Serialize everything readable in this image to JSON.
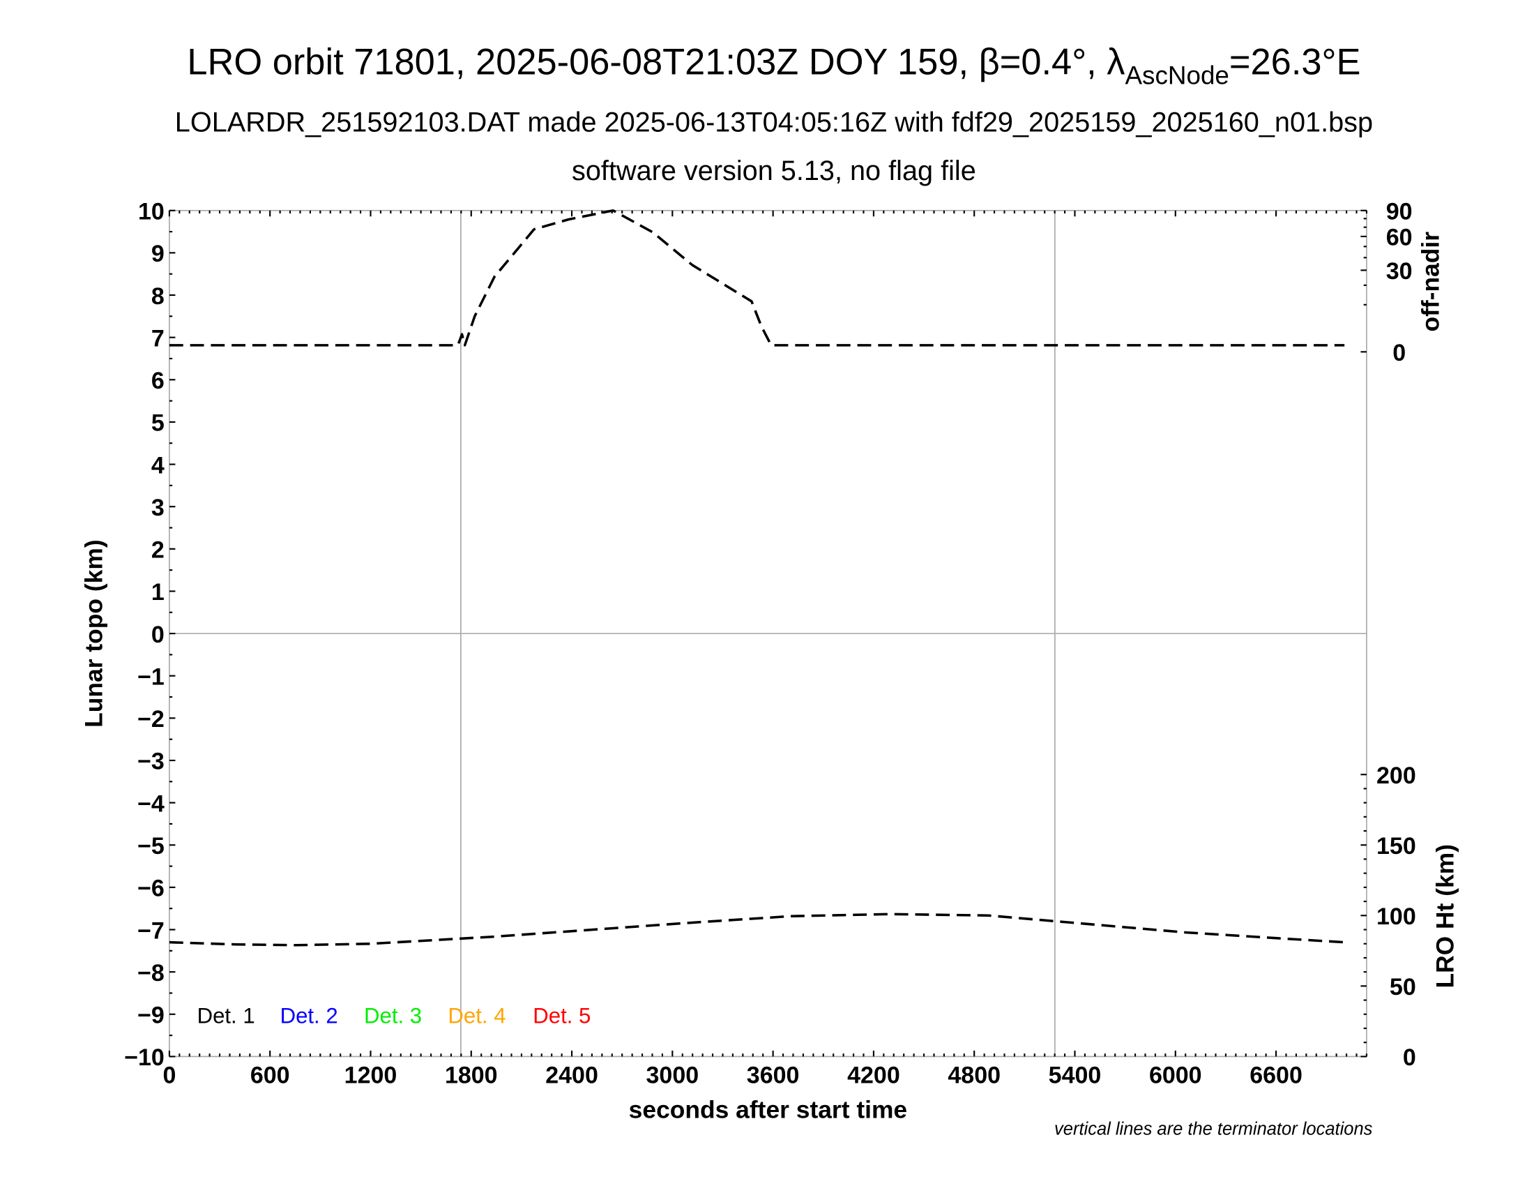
{
  "title": {
    "main": "LRO orbit 71801, 2025-06-08T21:03Z DOY 159, β=0.4°, λ",
    "sub": "AscNode",
    "tail": "=26.3°E",
    "line2": "LOLARDR_251592103.DAT made 2025-06-13T04:05:16Z with fdf29_2025159_2025160_n01.bsp",
    "line3": "software version 5.13, no flag file"
  },
  "footnote": "vertical lines are the terminator locations",
  "chart_data": {
    "type": "line",
    "xlabel": "seconds after start time",
    "xlim": [
      0,
      7140
    ],
    "xticks": [
      0,
      600,
      1200,
      1800,
      2400,
      3000,
      3600,
      4200,
      4800,
      5400,
      6000,
      6600
    ],
    "grid": false,
    "terminators": [
      1738,
      5281
    ],
    "axes": {
      "left": {
        "label": "Lunar topo (km)",
        "lim": [
          -10,
          10
        ],
        "ticks": [
          10,
          9,
          8,
          7,
          6,
          5,
          4,
          3,
          2,
          1,
          0,
          -1,
          -2,
          -3,
          -4,
          -5,
          -6,
          -7,
          -8,
          -9,
          -10
        ]
      },
      "right_top": {
        "label": "off-nadir",
        "scale": "sqrt",
        "lim": [
          0,
          90
        ],
        "ticks": [
          0,
          30,
          60,
          90
        ]
      },
      "right_bottom": {
        "label": "LRO Ht (km)",
        "lim": [
          0,
          600
        ],
        "ticks": [
          0,
          50,
          100,
          150,
          200
        ]
      }
    },
    "legend": {
      "placement": "bottom-left",
      "entries": [
        {
          "name": "Det. 1",
          "color": "#000000"
        },
        {
          "name": "Det. 2",
          "color": "#0000ff"
        },
        {
          "name": "Det. 3",
          "color": "#00ee00"
        },
        {
          "name": "Det. 4",
          "color": "#ffa500"
        },
        {
          "name": "Det. 5",
          "color": "#ff0000"
        }
      ]
    },
    "series": [
      {
        "axis": "right_top",
        "style": "dashed",
        "x": [
          0,
          1721,
          1745,
          1762,
          1821,
          1939,
          2175,
          2381,
          2646,
          2882,
          3118,
          3472,
          3530,
          3589,
          4000,
          7008
        ],
        "y": [
          0.2,
          0.2,
          1.4,
          0.2,
          5.7,
          25.4,
          67.7,
          79,
          90,
          64.5,
          34,
          11.5,
          3,
          0.2,
          0.2,
          0.2
        ]
      },
      {
        "axis": "right_bottom",
        "style": "dashed",
        "x": [
          0,
          400,
          760,
          1200,
          1939,
          2528,
          3118,
          3707,
          4296,
          4885,
          5476,
          6065,
          6600,
          7008
        ],
        "y": [
          81,
          79.5,
          79,
          80,
          85,
          90,
          95,
          99.5,
          101,
          100,
          94,
          88,
          84,
          81
        ]
      }
    ]
  }
}
